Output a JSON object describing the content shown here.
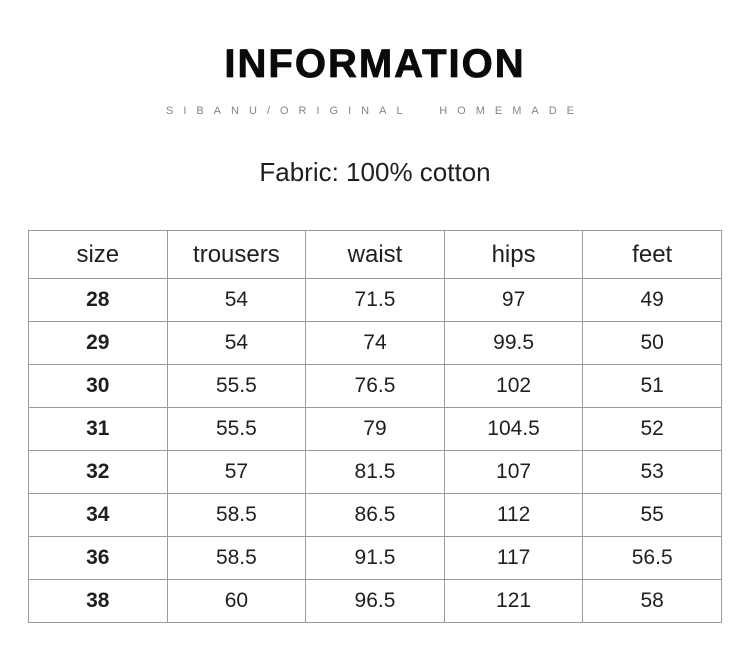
{
  "header": {
    "title": "INFORMATION",
    "subtitle": "SIBANU/ORIGINAL HOMEMADE",
    "fabric": "Fabric: 100% cotton"
  },
  "size_table": {
    "columns": [
      "size",
      "trousers",
      "waist",
      "hips",
      "feet"
    ],
    "rows": [
      [
        "28",
        "54",
        "71.5",
        "97",
        "49"
      ],
      [
        "29",
        "54",
        "74",
        "99.5",
        "50"
      ],
      [
        "30",
        "55.5",
        "76.5",
        "102",
        "51"
      ],
      [
        "31",
        "55.5",
        "79",
        "104.5",
        "52"
      ],
      [
        "32",
        "57",
        "81.5",
        "107",
        "53"
      ],
      [
        "34",
        "58.5",
        "86.5",
        "112",
        "55"
      ],
      [
        "36",
        "58.5",
        "91.5",
        "117",
        "56.5"
      ],
      [
        "38",
        "60",
        "96.5",
        "121",
        "58"
      ]
    ]
  },
  "colors": {
    "background": "#ffffff",
    "title_text": "#0a0a0a",
    "subtitle_text": "#858585",
    "body_text": "#1f1f1f",
    "table_border": "#9b9b9b"
  }
}
